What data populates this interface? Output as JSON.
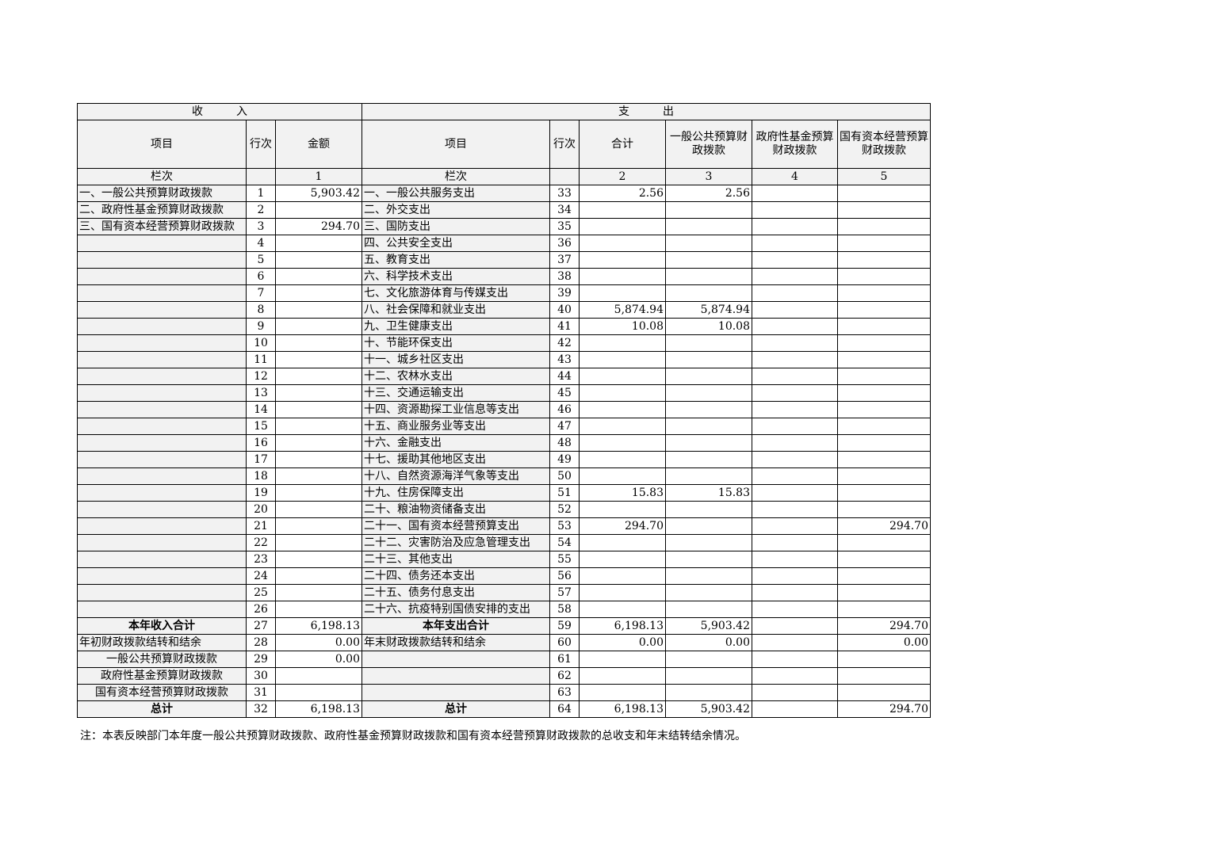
{
  "header": {
    "income": "收　　　入",
    "expense": "支　　　出",
    "columns": [
      "项目",
      "行次",
      "金额",
      "项目",
      "行次",
      "合计",
      "一般公共预算财政拨款",
      "政府性基金预算财政拨款",
      "国有资本经营预算财政拨款"
    ],
    "column_numbers": [
      "栏次",
      null,
      "1",
      "栏次",
      null,
      "2",
      "3",
      "4",
      "5"
    ]
  },
  "table": {
    "rows": [
      [
        "一、一般公共预算财政拨款",
        "1",
        "5,903.42",
        "一、一般公共服务支出",
        "33",
        "2.56",
        "2.56",
        null,
        null
      ],
      [
        "二、政府性基金预算财政拨款",
        "2",
        null,
        "二、外交支出",
        "34",
        null,
        null,
        null,
        null
      ],
      [
        "三、国有资本经营预算财政拨款",
        "3",
        "294.70",
        "三、国防支出",
        "35",
        null,
        null,
        null,
        null
      ],
      [
        null,
        "4",
        null,
        "四、公共安全支出",
        "36",
        null,
        null,
        null,
        null
      ],
      [
        null,
        "5",
        null,
        "五、教育支出",
        "37",
        null,
        null,
        null,
        null
      ],
      [
        null,
        "6",
        null,
        "六、科学技术支出",
        "38",
        null,
        null,
        null,
        null
      ],
      [
        null,
        "7",
        null,
        "七、文化旅游体育与传媒支出",
        "39",
        null,
        null,
        null,
        null
      ],
      [
        null,
        "8",
        null,
        "八、社会保障和就业支出",
        "40",
        "5,874.94",
        "5,874.94",
        null,
        null
      ],
      [
        null,
        "9",
        null,
        "九、卫生健康支出",
        "41",
        "10.08",
        "10.08",
        null,
        null
      ],
      [
        null,
        "10",
        null,
        "十、节能环保支出",
        "42",
        null,
        null,
        null,
        null
      ],
      [
        null,
        "11",
        null,
        "十一、城乡社区支出",
        "43",
        null,
        null,
        null,
        null
      ],
      [
        null,
        "12",
        null,
        "十二、农林水支出",
        "44",
        null,
        null,
        null,
        null
      ],
      [
        null,
        "13",
        null,
        "十三、交通运输支出",
        "45",
        null,
        null,
        null,
        null
      ],
      [
        null,
        "14",
        null,
        "十四、资源勘探工业信息等支出",
        "46",
        null,
        null,
        null,
        null
      ],
      [
        null,
        "15",
        null,
        "十五、商业服务业等支出",
        "47",
        null,
        null,
        null,
        null
      ],
      [
        null,
        "16",
        null,
        "十六、金融支出",
        "48",
        null,
        null,
        null,
        null
      ],
      [
        null,
        "17",
        null,
        "十七、援助其他地区支出",
        "49",
        null,
        null,
        null,
        null
      ],
      [
        null,
        "18",
        null,
        "十八、自然资源海洋气象等支出",
        "50",
        null,
        null,
        null,
        null
      ],
      [
        null,
        "19",
        null,
        "十九、住房保障支出",
        "51",
        "15.83",
        "15.83",
        null,
        null
      ],
      [
        null,
        "20",
        null,
        "二十、粮油物资储备支出",
        "52",
        null,
        null,
        null,
        null
      ],
      [
        null,
        "21",
        null,
        "二十一、国有资本经营预算支出",
        "53",
        "294.70",
        null,
        null,
        "294.70"
      ],
      [
        null,
        "22",
        null,
        "二十二、灾害防治及应急管理支出",
        "54",
        null,
        null,
        null,
        null
      ],
      [
        null,
        "23",
        null,
        "二十三、其他支出",
        "55",
        null,
        null,
        null,
        null
      ],
      [
        null,
        "24",
        null,
        "二十四、债务还本支出",
        "56",
        null,
        null,
        null,
        null
      ],
      [
        null,
        "25",
        null,
        "二十五、债务付息支出",
        "57",
        null,
        null,
        null,
        null
      ],
      [
        null,
        "26",
        null,
        "二十六、抗疫特别国债安排的支出",
        "58",
        null,
        null,
        null,
        null
      ],
      [
        "本年收入合计",
        "27",
        "6,198.13",
        "本年支出合计",
        "59",
        "6,198.13",
        "5,903.42",
        null,
        "294.70"
      ],
      [
        "年初财政拨款结转和结余",
        "28",
        "0.00",
        "年末财政拨款结转和结余",
        "60",
        "0.00",
        "0.00",
        null,
        "0.00"
      ],
      [
        "一般公共预算财政拨款",
        "29",
        "0.00",
        null,
        "61",
        null,
        null,
        null,
        null
      ],
      [
        "政府性基金预算财政拨款",
        "30",
        null,
        null,
        "62",
        null,
        null,
        null,
        null
      ],
      [
        "国有资本经营预算财政拨款",
        "31",
        null,
        null,
        "63",
        null,
        null,
        null,
        null
      ],
      [
        "总计",
        "32",
        "6,198.13",
        "总计",
        "64",
        "6,198.13",
        "5,903.42",
        null,
        "294.70"
      ]
    ]
  },
  "footer": {
    "note": "注：本表反映部门本年度一般公共预算财政拨款、政府性基金预算财政拨款和国有资本经营预算财政拨款的总收支和年末结转结余情况。"
  }
}
